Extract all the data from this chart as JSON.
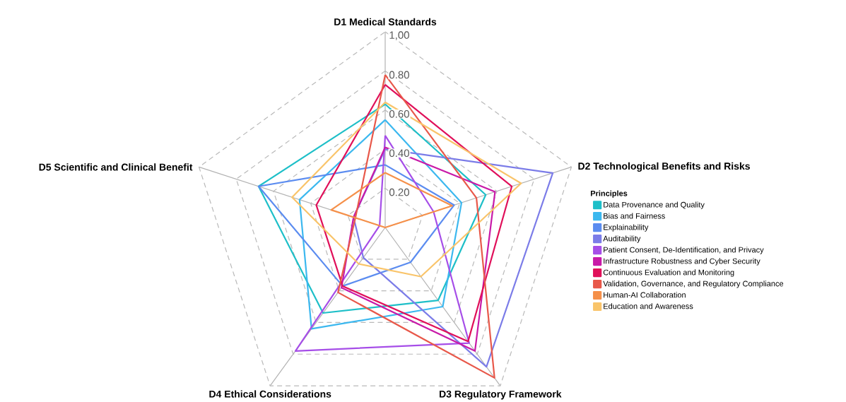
{
  "chart_data": {
    "type": "radar",
    "categories": [
      "D1 Medical Standards",
      "D2 Technological Benefits and Risks",
      "D3 Regulatory Framework",
      "D4 Ethical Considerations",
      "D5 Scientific and Clinical Benefit"
    ],
    "legend_title": "Principles",
    "legend": "right",
    "grid": true,
    "ylim": [
      0,
      1
    ],
    "yticks": [
      {
        "value": 0.2,
        "label": "0.20"
      },
      {
        "value": 0.4,
        "label": "0.40"
      },
      {
        "value": 0.6,
        "label": "0.60"
      },
      {
        "value": 0.8,
        "label": "0.80"
      },
      {
        "value": 1.0,
        "label": "1,00"
      }
    ],
    "series": [
      {
        "name": "Data Provenance and Quality",
        "color": "#1ebfc8",
        "values": [
          0.63,
          0.54,
          0.46,
          0.54,
          0.68
        ]
      },
      {
        "name": "Bias and Fairness",
        "color": "#3cb8ef",
        "values": [
          0.55,
          0.41,
          0.5,
          0.64,
          0.46
        ]
      },
      {
        "name": "Explainability",
        "color": "#5b8cf0",
        "values": [
          0.32,
          0.37,
          0.22,
          0.37,
          0.68
        ]
      },
      {
        "name": "Auditability",
        "color": "#7b7ce8",
        "values": [
          0.4,
          0.9,
          0.88,
          0.19,
          0.17
        ]
      },
      {
        "name": "Patient Consent, De-Identification, and Privacy",
        "color": "#a64ee8",
        "values": [
          0.47,
          0.26,
          0.73,
          0.78,
          0.03
        ]
      },
      {
        "name": "Infrastructure Robustness and Cyber Security",
        "color": "#c81aa8",
        "values": [
          0.41,
          0.59,
          0.78,
          0.38,
          0.17
        ]
      },
      {
        "name": "Continuous Evaluation and Monitoring",
        "color": "#e0105a",
        "values": [
          0.73,
          0.68,
          0.72,
          0.37,
          0.37
        ]
      },
      {
        "name": "Validation, Governance, and Regulatory Compliance",
        "color": "#e8584a",
        "values": [
          0.78,
          0.49,
          0.95,
          0.41,
          0.16
        ]
      },
      {
        "name": "Human-AI Collaboration",
        "color": "#f5904a",
        "values": [
          0.28,
          0.36,
          0,
          0,
          0.29
        ]
      },
      {
        "name": "Education and Awareness",
        "color": "#f9c46a",
        "values": [
          0.64,
          0.73,
          0.31,
          0.23,
          0.5
        ]
      }
    ]
  }
}
